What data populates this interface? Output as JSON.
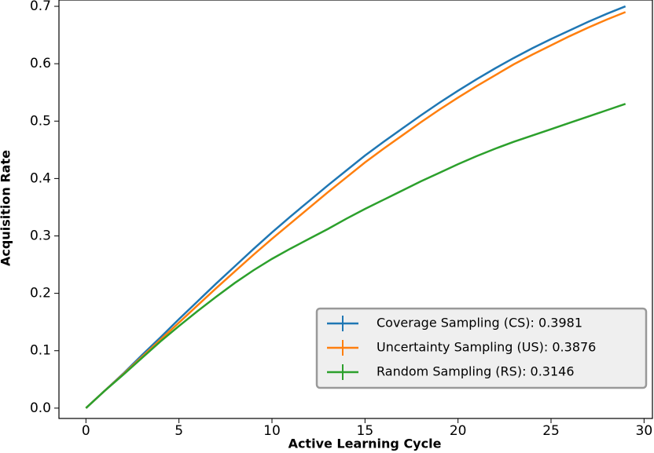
{
  "chart_data": {
    "type": "line",
    "xlabel": "Active Learning Cycle",
    "ylabel": "Acquisition Rate",
    "x": [
      0,
      1,
      2,
      3,
      4,
      5,
      6,
      7,
      8,
      9,
      10,
      11,
      12,
      13,
      14,
      15,
      16,
      17,
      18,
      19,
      20,
      21,
      22,
      23,
      24,
      25,
      26,
      27,
      28,
      29
    ],
    "series": [
      {
        "name": "Coverage Sampling (CS): 0.3981",
        "color": "#1f77b4",
        "values": [
          0,
          0.03,
          0.06,
          0.092,
          0.123,
          0.155,
          0.186,
          0.217,
          0.247,
          0.277,
          0.306,
          0.334,
          0.361,
          0.388,
          0.414,
          0.44,
          0.464,
          0.487,
          0.51,
          0.532,
          0.553,
          0.573,
          0.592,
          0.61,
          0.627,
          0.643,
          0.658,
          0.673,
          0.687,
          0.7
        ]
      },
      {
        "name": "Uncertainty Sampling (US): 0.3876",
        "color": "#ff7f0e",
        "values": [
          0,
          0.03,
          0.059,
          0.089,
          0.119,
          0.149,
          0.179,
          0.209,
          0.238,
          0.267,
          0.295,
          0.322,
          0.349,
          0.376,
          0.402,
          0.428,
          0.452,
          0.475,
          0.498,
          0.52,
          0.541,
          0.561,
          0.58,
          0.599,
          0.616,
          0.632,
          0.648,
          0.663,
          0.677,
          0.69
        ]
      },
      {
        "name": "Random Sampling (RS): 0.3146",
        "color": "#2ca02c",
        "values": [
          0,
          0.03,
          0.058,
          0.087,
          0.116,
          0.143,
          0.169,
          0.194,
          0.218,
          0.24,
          0.26,
          0.278,
          0.295,
          0.312,
          0.33,
          0.347,
          0.363,
          0.379,
          0.395,
          0.41,
          0.425,
          0.439,
          0.452,
          0.464,
          0.475,
          0.486,
          0.497,
          0.508,
          0.519,
          0.53
        ]
      }
    ],
    "xlim": [
      -1.45,
      30.45
    ],
    "ylim": [
      -0.018,
      0.711
    ],
    "xticks": [
      0,
      5,
      10,
      15,
      20,
      25,
      30
    ],
    "yticks": [
      {
        "value": 0,
        "label": "0.0"
      },
      0.1,
      0.2,
      0.3,
      0.4,
      0.5,
      0.6,
      0.7
    ],
    "legend": "lower right"
  }
}
